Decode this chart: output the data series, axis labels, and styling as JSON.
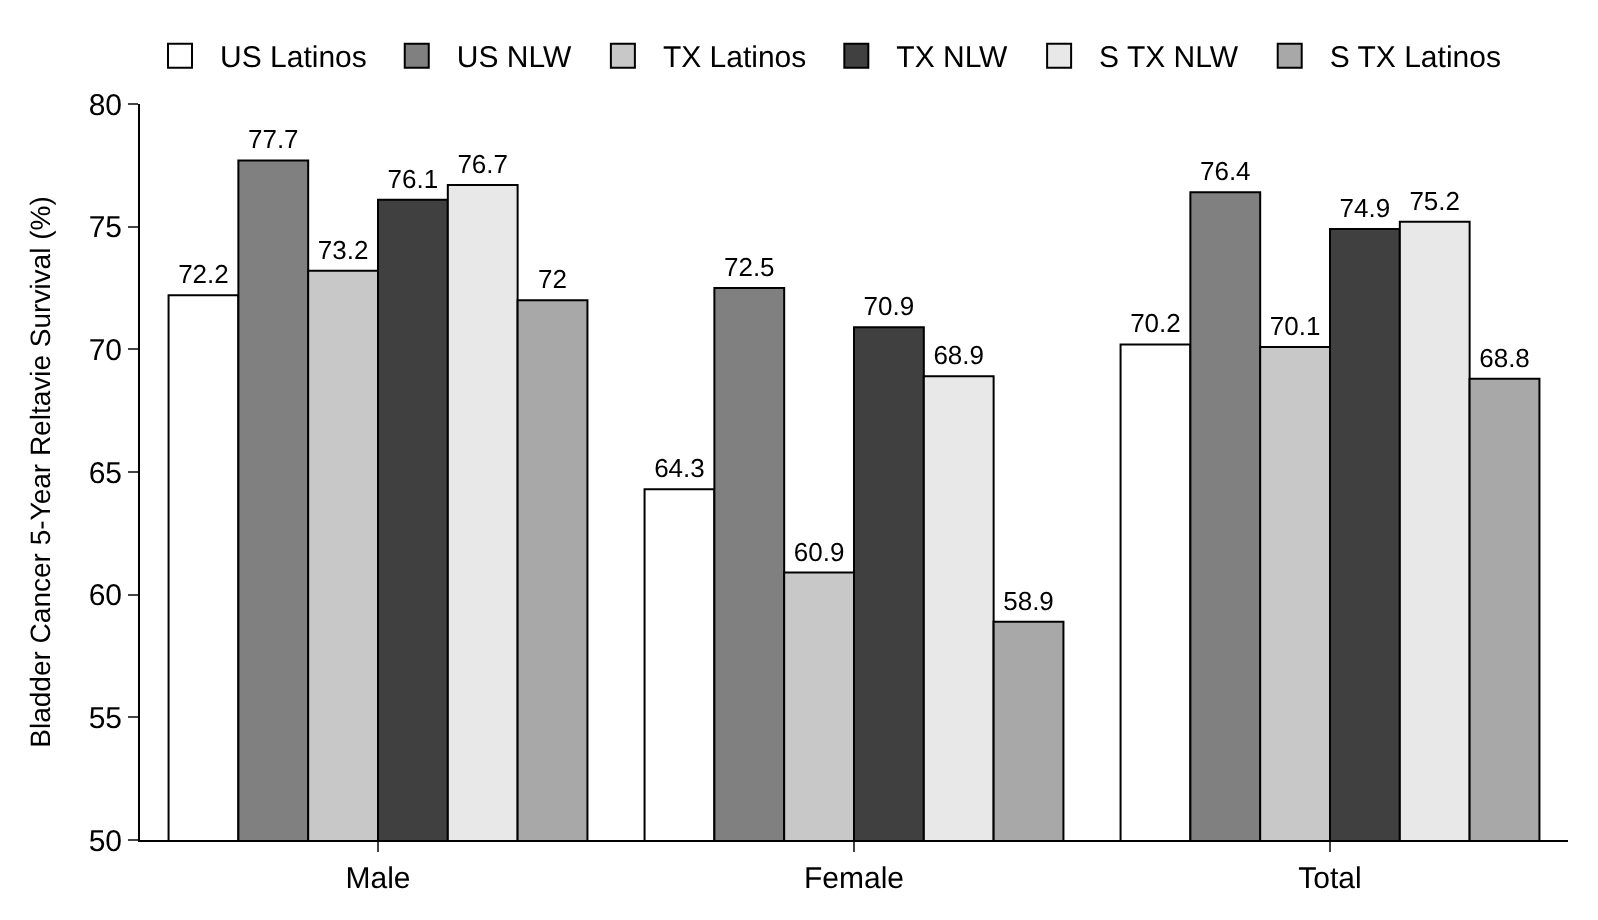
{
  "chart_data": {
    "type": "bar",
    "ylabel": "Bladder Cancer 5-Year Reltavie Survival (%)",
    "categories": [
      "Male",
      "Female",
      "Total"
    ],
    "series": [
      {
        "name": "US Latinos",
        "color": "#ffffff",
        "values": [
          72.2,
          64.3,
          70.2
        ]
      },
      {
        "name": "US NLW",
        "color": "#808080",
        "values": [
          77.7,
          72.5,
          76.4
        ]
      },
      {
        "name": "TX Latinos",
        "color": "#c8c8c8",
        "values": [
          73.2,
          60.9,
          70.1
        ]
      },
      {
        "name": "TX NLW",
        "color": "#404040",
        "values": [
          76.1,
          70.9,
          74.9
        ]
      },
      {
        "name": "S TX NLW",
        "color": "#e8e8e8",
        "values": [
          76.7,
          68.9,
          75.2
        ]
      },
      {
        "name": "S TX Latinos",
        "color": "#a8a8a8",
        "values": [
          72,
          58.9,
          68.8
        ]
      }
    ],
    "ylim": [
      50,
      80
    ],
    "yticks": [
      50,
      55,
      60,
      65,
      70,
      75,
      80
    ],
    "legend": "top",
    "data_labels": true
  }
}
